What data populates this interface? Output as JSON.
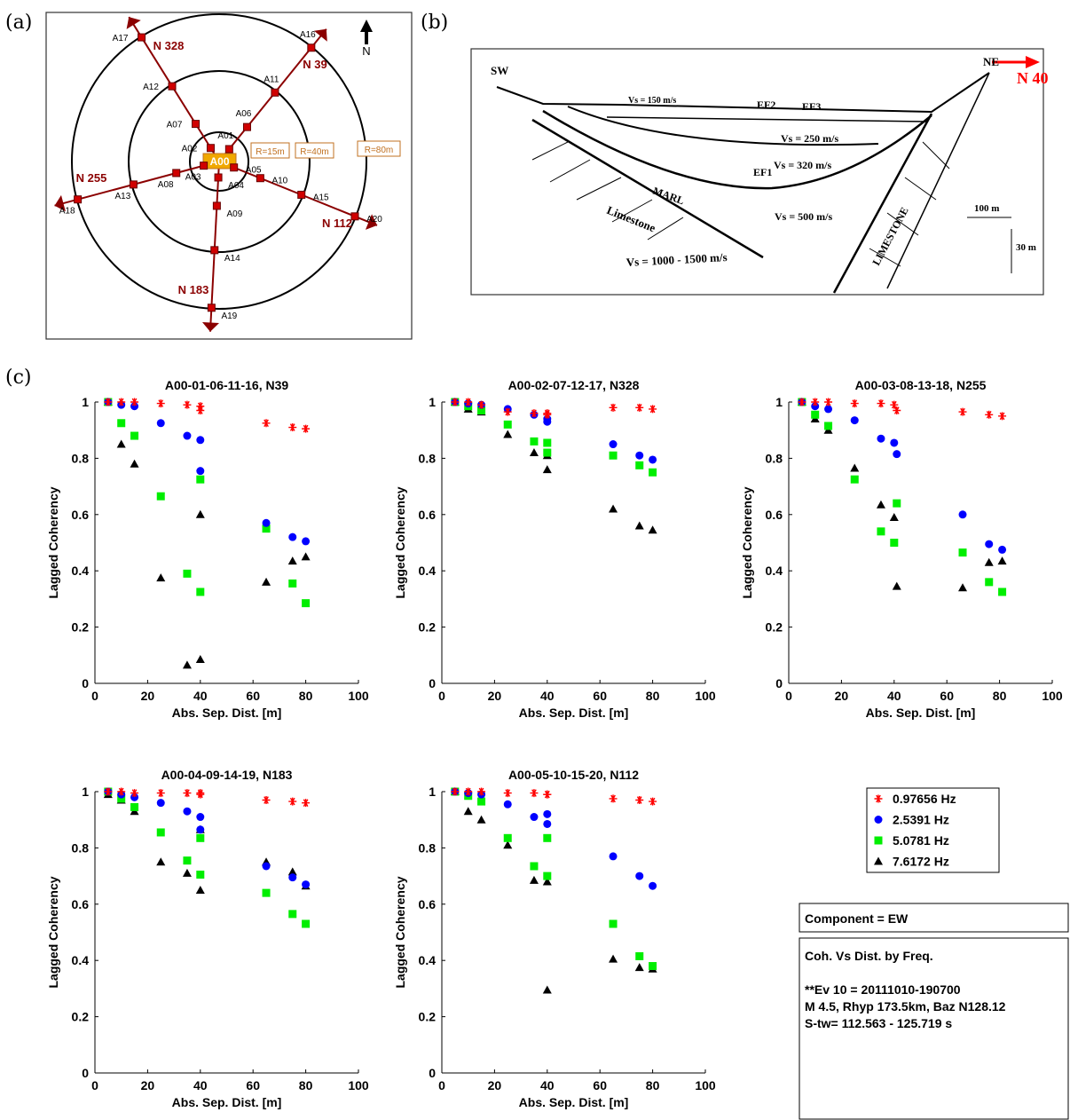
{
  "panel_labels": [
    "(a)",
    "(b)",
    "(c)"
  ],
  "station_map": {
    "stations": [
      "A00",
      "A01",
      "A02",
      "A03",
      "A04",
      "A05",
      "A06",
      "A07",
      "A08",
      "A09",
      "A10",
      "A11",
      "A12",
      "A13",
      "A14",
      "A15",
      "A16",
      "A17",
      "A18",
      "A19",
      "A20"
    ],
    "azimuths": [
      "N 39",
      "N 328",
      "N 255",
      "N 183",
      "N 112"
    ],
    "radii": [
      "R=15m",
      "R=40m",
      "R=80m"
    ],
    "north": "N"
  },
  "cross_section": {
    "labels": [
      "SW",
      "NE",
      "N 40",
      "Vs = 150 m/s",
      "EF2",
      "EF3",
      "Vs = 250 m/s",
      "Vs = 320 m/s",
      "EF1",
      "MARL",
      "Limestone",
      "Vs = 500 m/s",
      "LIMESTONE",
      "Vs = 1000 - 1500 m/s",
      "100 m",
      "30 m"
    ]
  },
  "legend": [
    {
      "name": "0.97656 Hz",
      "color": "#ff0000",
      "marker": "star"
    },
    {
      "name": "2.5391 Hz",
      "color": "#0000ff",
      "marker": "circle"
    },
    {
      "name": "5.0781 Hz",
      "color": "#00ee00",
      "marker": "square"
    },
    {
      "name": "7.6172 Hz",
      "color": "#000000",
      "marker": "triangle"
    }
  ],
  "chart_data": [
    {
      "type": "scatter",
      "title": "A00-01-06-11-16, N39",
      "xlabel": "Abs. Sep. Dist. [m]",
      "ylabel": "Lagged Coherency",
      "x": [
        5,
        10,
        15,
        25,
        35,
        40,
        40,
        65,
        75,
        80
      ],
      "series": [
        {
          "values": [
            1,
            1,
            1,
            0.995,
            0.99,
            0.985,
            0.97,
            0.925,
            0.91,
            0.905
          ]
        },
        {
          "values": [
            1,
            0.99,
            0.985,
            0.925,
            0.88,
            0.865,
            0.755,
            0.57,
            0.52,
            0.505
          ]
        },
        {
          "values": [
            1,
            0.925,
            0.88,
            0.665,
            0.39,
            0.725,
            0.325,
            0.55,
            0.355,
            0.285
          ]
        },
        {
          "values": [
            1,
            0.85,
            0.78,
            0.375,
            0.065,
            0.6,
            0.085,
            0.36,
            0.435,
            0.45
          ]
        }
      ],
      "xlim": [
        0,
        100
      ],
      "ylim": [
        0,
        1
      ],
      "xticks": [
        0,
        20,
        40,
        60,
        80,
        100
      ],
      "yticks": [
        0,
        0.2,
        0.4,
        0.6,
        0.8,
        1
      ]
    },
    {
      "type": "scatter",
      "title": "A00-02-07-12-17, N328",
      "xlabel": "Abs. Sep. Dist. [m]",
      "ylabel": "Lagged Coherency",
      "x": [
        5,
        10,
        15,
        25,
        35,
        40,
        40,
        65,
        75,
        80
      ],
      "series": [
        {
          "values": [
            1,
            1,
            0.99,
            0.965,
            0.96,
            0.96,
            0.955,
            0.98,
            0.98,
            0.975
          ]
        },
        {
          "values": [
            1,
            0.995,
            0.99,
            0.975,
            0.955,
            0.94,
            0.93,
            0.85,
            0.81,
            0.795
          ]
        },
        {
          "values": [
            1,
            0.985,
            0.97,
            0.92,
            0.86,
            0.855,
            0.82,
            0.81,
            0.775,
            0.75
          ]
        },
        {
          "values": [
            1,
            0.975,
            0.965,
            0.885,
            0.82,
            0.81,
            0.76,
            0.62,
            0.56,
            0.545
          ]
        }
      ],
      "xlim": [
        0,
        100
      ],
      "ylim": [
        0,
        1
      ],
      "xticks": [
        0,
        20,
        40,
        60,
        80,
        100
      ],
      "yticks": [
        0,
        0.2,
        0.4,
        0.6,
        0.8,
        1
      ]
    },
    {
      "type": "scatter",
      "title": "A00-03-08-13-18, N255",
      "xlabel": "Abs. Sep. Dist. [m]",
      "ylabel": "Lagged Coherency",
      "x": [
        5,
        10,
        15,
        25,
        35,
        40,
        41,
        66,
        76,
        81
      ],
      "series": [
        {
          "values": [
            1,
            1,
            1,
            0.995,
            0.995,
            0.99,
            0.97,
            0.965,
            0.955,
            0.95
          ]
        },
        {
          "values": [
            1,
            0.985,
            0.975,
            0.935,
            0.87,
            0.855,
            0.815,
            0.6,
            0.495,
            0.475
          ]
        },
        {
          "values": [
            1,
            0.955,
            0.915,
            0.725,
            0.54,
            0.5,
            0.64,
            0.465,
            0.36,
            0.325
          ]
        },
        {
          "values": [
            1,
            0.94,
            0.9,
            0.765,
            0.635,
            0.59,
            0.345,
            0.34,
            0.43,
            0.435
          ]
        }
      ],
      "xlim": [
        0,
        100
      ],
      "ylim": [
        0,
        1
      ],
      "xticks": [
        0,
        20,
        40,
        60,
        80,
        100
      ],
      "yticks": [
        0,
        0.2,
        0.4,
        0.6,
        0.8,
        1
      ]
    },
    {
      "type": "scatter",
      "title": "A00-04-09-14-19, N183",
      "xlabel": "Abs. Sep. Dist. [m]",
      "ylabel": "Lagged Coherency",
      "x": [
        5,
        10,
        15,
        25,
        35,
        40,
        40,
        65,
        75,
        80
      ],
      "series": [
        {
          "values": [
            1,
            1,
            0.995,
            0.995,
            0.995,
            0.995,
            0.99,
            0.97,
            0.965,
            0.96
          ]
        },
        {
          "values": [
            1,
            0.99,
            0.98,
            0.96,
            0.93,
            0.91,
            0.865,
            0.735,
            0.695,
            0.67
          ]
        },
        {
          "values": [
            1,
            0.975,
            0.945,
            0.855,
            0.755,
            0.835,
            0.705,
            0.64,
            0.565,
            0.53
          ]
        },
        {
          "values": [
            0.99,
            0.97,
            0.93,
            0.75,
            0.71,
            0.865,
            0.65,
            0.75,
            0.715,
            0.665
          ]
        }
      ],
      "xlim": [
        0,
        100
      ],
      "ylim": [
        0,
        1
      ],
      "xticks": [
        0,
        20,
        40,
        60,
        80,
        100
      ],
      "yticks": [
        0,
        0.2,
        0.4,
        0.6,
        0.8,
        1
      ]
    },
    {
      "type": "scatter",
      "title": "A00-05-10-15-20, N112",
      "xlabel": "Abs. Sep. Dist. [m]",
      "ylabel": "Lagged Coherency",
      "x": [
        5,
        10,
        15,
        25,
        35,
        40,
        40,
        65,
        75,
        80
      ],
      "series": [
        {
          "values": [
            1,
            1,
            1,
            0.995,
            0.995,
            0.99,
            0.99,
            0.975,
            0.97,
            0.965
          ]
        },
        {
          "values": [
            1,
            0.995,
            0.99,
            0.955,
            0.91,
            0.92,
            0.885,
            0.77,
            0.7,
            0.665
          ]
        },
        {
          "values": [
            1,
            0.985,
            0.965,
            0.835,
            0.735,
            0.835,
            0.7,
            0.53,
            0.415,
            0.38
          ]
        },
        {
          "values": [
            1,
            0.93,
            0.9,
            0.81,
            0.685,
            0.68,
            0.295,
            0.405,
            0.375,
            0.37
          ]
        }
      ],
      "xlim": [
        0,
        100
      ],
      "ylim": [
        0,
        1
      ],
      "xticks": [
        0,
        20,
        40,
        60,
        80,
        100
      ],
      "yticks": [
        0,
        0.2,
        0.4,
        0.6,
        0.8,
        1
      ]
    }
  ],
  "component": "Component = EW",
  "info": [
    "Coh. Vs Dist. by Freq.",
    "**Ev 10 = 20111010-190700",
    "M 4.5, Rhyp 173.5km, Baz N128.12",
    "S-tw= 112.563 - 125.719 s"
  ]
}
